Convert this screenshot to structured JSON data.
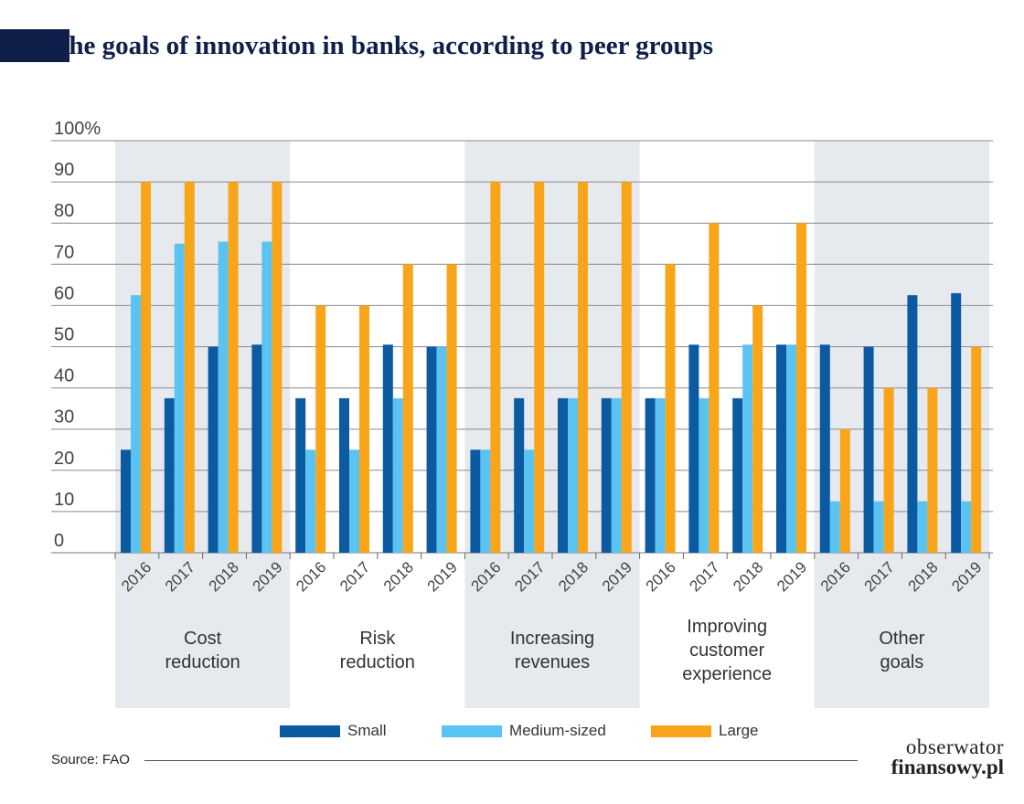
{
  "title": "The goals of innovation in banks, according to peer groups",
  "source": "Source: FAO",
  "logo": {
    "line1": "obserwator",
    "line2": "finansowy.pl"
  },
  "colors": {
    "small": "#0b5aa2",
    "medium": "#5bc3f2",
    "large": "#f9a51a",
    "band": "#e6e9ee",
    "title": "#0f1f4a"
  },
  "chart_data": {
    "type": "bar",
    "title": "The goals of innovation in banks, according to peer groups",
    "xlabel": "",
    "ylabel": "",
    "ylim": [
      0,
      100
    ],
    "y_ticks": [
      "0",
      "10",
      "20",
      "30",
      "40",
      "50",
      "60",
      "70",
      "80",
      "90",
      "100%"
    ],
    "groups": [
      "Cost\nreduction",
      "Risk\nreduction",
      "Increasing\nrevenues",
      "Improving\ncustomer\nexperience",
      "Other\ngoals"
    ],
    "years": [
      "2016",
      "2017",
      "2018",
      "2019"
    ],
    "grid": true,
    "legend_position": "bottom",
    "series": [
      {
        "name": "Small",
        "values": [
          25,
          37.5,
          50,
          50.5,
          37.5,
          37.5,
          50.5,
          50,
          25,
          37.5,
          37.5,
          37.5,
          37.5,
          50.5,
          37.5,
          50.5,
          50.5,
          50,
          62.5,
          63
        ]
      },
      {
        "name": "Medium-sized",
        "values": [
          62.5,
          75,
          75.5,
          75.5,
          25,
          25,
          37.5,
          50,
          25,
          25,
          37.5,
          37.5,
          37.5,
          37.5,
          50.5,
          50.5,
          12.5,
          12.5,
          12.5,
          12.5
        ]
      },
      {
        "name": "Large",
        "values": [
          90,
          90,
          90,
          90,
          60,
          60,
          70,
          70,
          90,
          90,
          90,
          90,
          70,
          80,
          60,
          80,
          30,
          40,
          40,
          50
        ]
      }
    ]
  }
}
